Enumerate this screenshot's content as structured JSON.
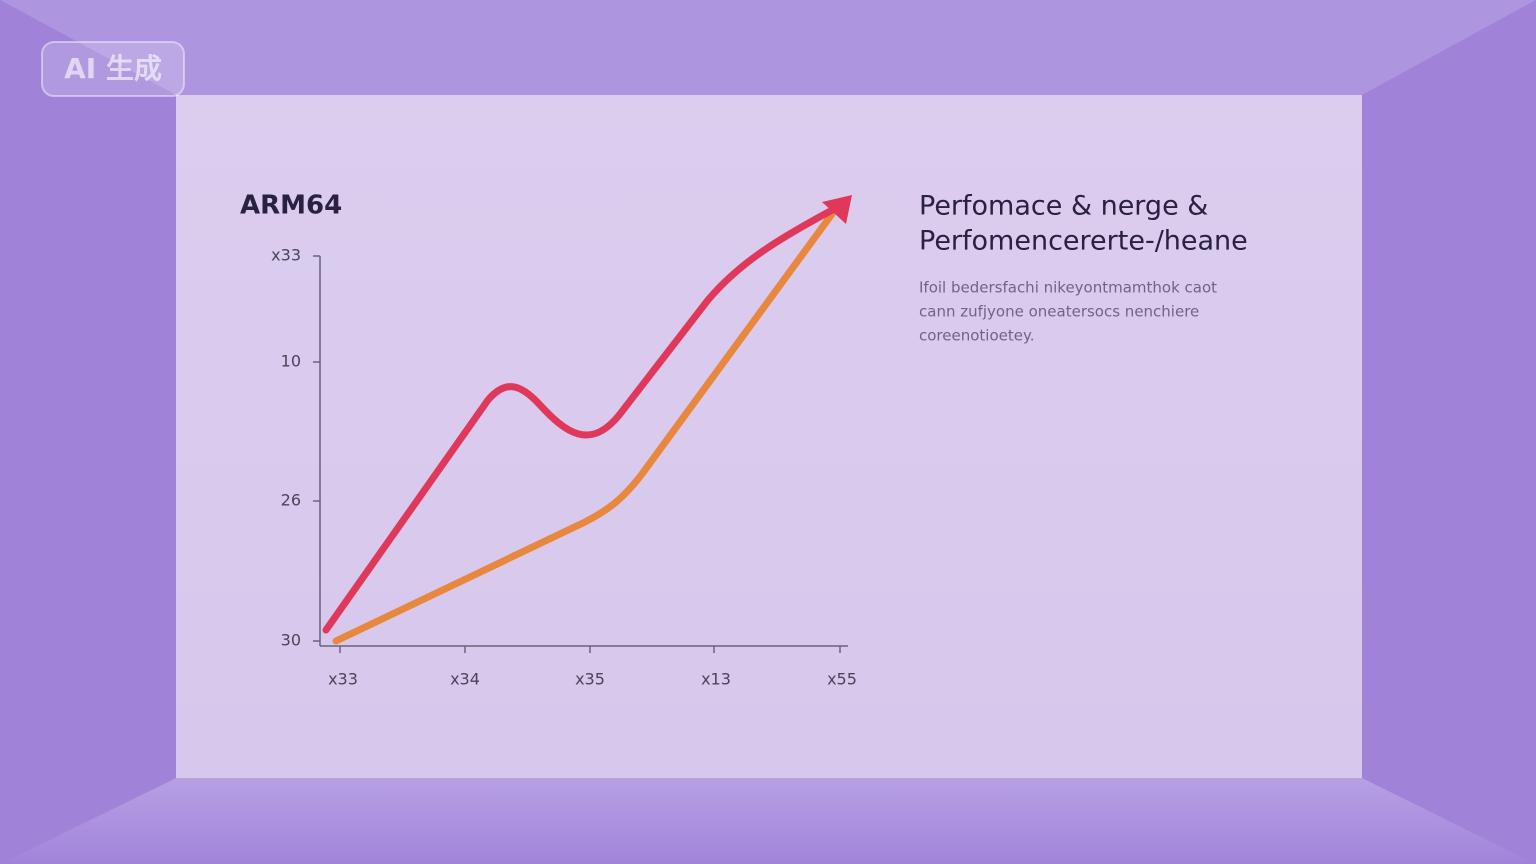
{
  "badge": "AI 生成",
  "chart": {
    "title": "ARM64",
    "y_labels": [
      "x33",
      "10",
      "26",
      "30"
    ],
    "x_labels": [
      "x33",
      "x34",
      "x35",
      "x13",
      "x55"
    ]
  },
  "heading": [
    "Perfomace & nerge &",
    "Perfomencerertе-/heane"
  ],
  "paragraph": [
    "Ifoil bedersfachi nikeyontmamthok caot",
    "cann zufjyone oneatersocs nenchiere",
    "coreenotioetey."
  ]
}
